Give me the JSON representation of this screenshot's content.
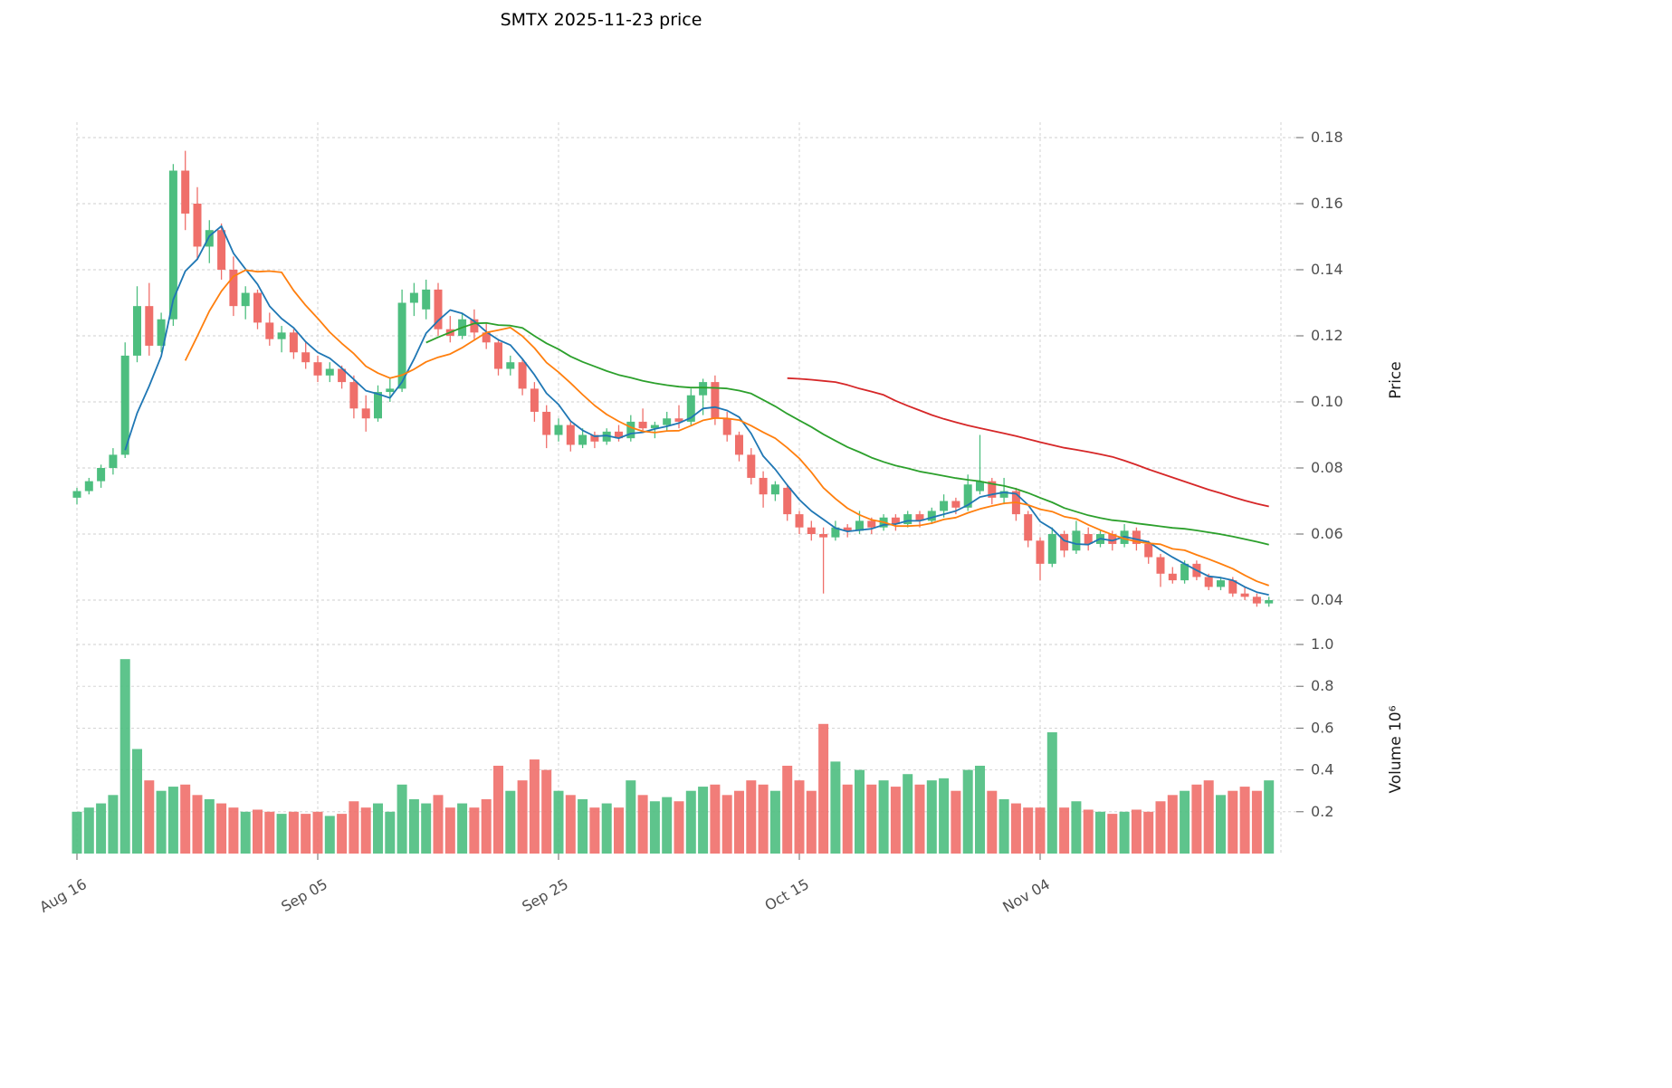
{
  "title": "SMTX  2025-11-23  price",
  "axes": {
    "price_label": "Price",
    "volume_label": "Volume  10⁶",
    "price_ticks": [
      "0.04",
      "0.06",
      "0.08",
      "0.10",
      "0.12",
      "0.14",
      "0.16",
      "0.18"
    ],
    "volume_ticks": [
      "0.2",
      "0.4",
      "0.6",
      "0.8",
      "1.0"
    ],
    "x_ticks": [
      {
        "label": "Aug 16",
        "day": 0
      },
      {
        "label": "Sep 05",
        "day": 20
      },
      {
        "label": "Sep 25",
        "day": 40
      },
      {
        "label": "Oct 15",
        "day": 60
      },
      {
        "label": "Nov 04",
        "day": 80
      }
    ],
    "extra_grid_days": [
      100
    ]
  },
  "chart_data": {
    "type": "candlestick",
    "title": "SMTX  2025-11-23  price",
    "symbol": "SMTX",
    "date": "2025-11-23",
    "x_tick_labels": [
      "Aug 16",
      "Sep 05",
      "Sep 25",
      "Oct 15",
      "Nov 04"
    ],
    "price_axis_range": [
      0.035,
      0.1846
    ],
    "volume_axis_range": [
      0,
      1.03
    ],
    "volume_unit_millions": true,
    "grid": "dashed",
    "colors": {
      "up": "#4dbe7f",
      "down": "#ef6f6a",
      "ma5": "#1f77b4",
      "ma10": "#ff7f0e",
      "ma30": "#2ca02c",
      "ma60": "#d62728"
    },
    "moving_averages": [
      {
        "window": 5,
        "color": "#1f77b4"
      },
      {
        "window": 10,
        "color": "#ff7f0e"
      },
      {
        "window": 30,
        "color": "#2ca02c"
      },
      {
        "window": 60,
        "color": "#d62728"
      }
    ],
    "ohlcv_columns": [
      "open",
      "high",
      "low",
      "close",
      "volume_millions"
    ],
    "ohlcv": [
      [
        0.071,
        0.074,
        0.069,
        0.073,
        0.2
      ],
      [
        0.073,
        0.077,
        0.072,
        0.076,
        0.22
      ],
      [
        0.076,
        0.081,
        0.074,
        0.08,
        0.24
      ],
      [
        0.08,
        0.086,
        0.078,
        0.084,
        0.28
      ],
      [
        0.084,
        0.118,
        0.083,
        0.114,
        0.93
      ],
      [
        0.114,
        0.135,
        0.112,
        0.129,
        0.5
      ],
      [
        0.129,
        0.136,
        0.114,
        0.117,
        0.35
      ],
      [
        0.117,
        0.127,
        0.115,
        0.125,
        0.3
      ],
      [
        0.125,
        0.172,
        0.123,
        0.17,
        0.32
      ],
      [
        0.17,
        0.176,
        0.152,
        0.157,
        0.33
      ],
      [
        0.16,
        0.165,
        0.143,
        0.147,
        0.28
      ],
      [
        0.147,
        0.155,
        0.142,
        0.152,
        0.26
      ],
      [
        0.152,
        0.154,
        0.137,
        0.14,
        0.24
      ],
      [
        0.14,
        0.144,
        0.126,
        0.129,
        0.22
      ],
      [
        0.129,
        0.135,
        0.125,
        0.133,
        0.2
      ],
      [
        0.133,
        0.134,
        0.122,
        0.124,
        0.21
      ],
      [
        0.124,
        0.127,
        0.117,
        0.119,
        0.2
      ],
      [
        0.119,
        0.123,
        0.115,
        0.121,
        0.19
      ],
      [
        0.121,
        0.122,
        0.113,
        0.115,
        0.2
      ],
      [
        0.115,
        0.118,
        0.11,
        0.112,
        0.19
      ],
      [
        0.112,
        0.114,
        0.106,
        0.108,
        0.2
      ],
      [
        0.108,
        0.112,
        0.106,
        0.11,
        0.18
      ],
      [
        0.11,
        0.111,
        0.104,
        0.106,
        0.19
      ],
      [
        0.106,
        0.108,
        0.095,
        0.098,
        0.25
      ],
      [
        0.098,
        0.102,
        0.091,
        0.095,
        0.22
      ],
      [
        0.095,
        0.105,
        0.094,
        0.103,
        0.24
      ],
      [
        0.103,
        0.107,
        0.1,
        0.104,
        0.2
      ],
      [
        0.104,
        0.134,
        0.103,
        0.13,
        0.33
      ],
      [
        0.13,
        0.136,
        0.126,
        0.133,
        0.26
      ],
      [
        0.128,
        0.137,
        0.125,
        0.134,
        0.24
      ],
      [
        0.134,
        0.136,
        0.12,
        0.122,
        0.28
      ],
      [
        0.122,
        0.126,
        0.118,
        0.12,
        0.22
      ],
      [
        0.12,
        0.127,
        0.119,
        0.125,
        0.24
      ],
      [
        0.125,
        0.128,
        0.119,
        0.121,
        0.22
      ],
      [
        0.121,
        0.124,
        0.116,
        0.118,
        0.26
      ],
      [
        0.118,
        0.119,
        0.108,
        0.11,
        0.42
      ],
      [
        0.11,
        0.114,
        0.108,
        0.112,
        0.3
      ],
      [
        0.112,
        0.113,
        0.102,
        0.104,
        0.35
      ],
      [
        0.104,
        0.106,
        0.094,
        0.097,
        0.45
      ],
      [
        0.097,
        0.099,
        0.086,
        0.09,
        0.4
      ],
      [
        0.09,
        0.095,
        0.088,
        0.093,
        0.3
      ],
      [
        0.093,
        0.094,
        0.085,
        0.087,
        0.28
      ],
      [
        0.087,
        0.092,
        0.086,
        0.09,
        0.26
      ],
      [
        0.09,
        0.091,
        0.086,
        0.088,
        0.22
      ],
      [
        0.088,
        0.092,
        0.087,
        0.091,
        0.24
      ],
      [
        0.091,
        0.093,
        0.088,
        0.089,
        0.22
      ],
      [
        0.089,
        0.096,
        0.088,
        0.094,
        0.35
      ],
      [
        0.094,
        0.098,
        0.091,
        0.092,
        0.28
      ],
      [
        0.092,
        0.094,
        0.089,
        0.093,
        0.25
      ],
      [
        0.093,
        0.097,
        0.091,
        0.095,
        0.27
      ],
      [
        0.095,
        0.099,
        0.092,
        0.094,
        0.25
      ],
      [
        0.094,
        0.104,
        0.093,
        0.102,
        0.3
      ],
      [
        0.102,
        0.107,
        0.096,
        0.106,
        0.32
      ],
      [
        0.106,
        0.108,
        0.093,
        0.095,
        0.33
      ],
      [
        0.095,
        0.097,
        0.088,
        0.09,
        0.28
      ],
      [
        0.09,
        0.091,
        0.082,
        0.084,
        0.3
      ],
      [
        0.084,
        0.086,
        0.075,
        0.077,
        0.35
      ],
      [
        0.077,
        0.079,
        0.068,
        0.072,
        0.33
      ],
      [
        0.072,
        0.076,
        0.07,
        0.075,
        0.3
      ],
      [
        0.074,
        0.075,
        0.064,
        0.066,
        0.42
      ],
      [
        0.066,
        0.067,
        0.06,
        0.062,
        0.35
      ],
      [
        0.062,
        0.064,
        0.058,
        0.06,
        0.3
      ],
      [
        0.06,
        0.062,
        0.042,
        0.059,
        0.62
      ],
      [
        0.059,
        0.064,
        0.058,
        0.062,
        0.44
      ],
      [
        0.062,
        0.063,
        0.059,
        0.061,
        0.33
      ],
      [
        0.061,
        0.067,
        0.06,
        0.064,
        0.4
      ],
      [
        0.064,
        0.065,
        0.06,
        0.062,
        0.33
      ],
      [
        0.062,
        0.066,
        0.061,
        0.065,
        0.35
      ],
      [
        0.065,
        0.066,
        0.061,
        0.063,
        0.32
      ],
      [
        0.063,
        0.067,
        0.062,
        0.066,
        0.38
      ],
      [
        0.066,
        0.067,
        0.062,
        0.064,
        0.33
      ],
      [
        0.064,
        0.068,
        0.063,
        0.067,
        0.35
      ],
      [
        0.067,
        0.072,
        0.065,
        0.07,
        0.36
      ],
      [
        0.07,
        0.071,
        0.066,
        0.068,
        0.3
      ],
      [
        0.068,
        0.078,
        0.067,
        0.075,
        0.4
      ],
      [
        0.073,
        0.09,
        0.072,
        0.076,
        0.42
      ],
      [
        0.076,
        0.077,
        0.069,
        0.071,
        0.3
      ],
      [
        0.071,
        0.077,
        0.069,
        0.073,
        0.26
      ],
      [
        0.073,
        0.074,
        0.064,
        0.066,
        0.24
      ],
      [
        0.066,
        0.067,
        0.056,
        0.058,
        0.22
      ],
      [
        0.058,
        0.059,
        0.046,
        0.051,
        0.22
      ],
      [
        0.051,
        0.062,
        0.05,
        0.06,
        0.58
      ],
      [
        0.06,
        0.061,
        0.053,
        0.055,
        0.22
      ],
      [
        0.055,
        0.064,
        0.054,
        0.061,
        0.25
      ],
      [
        0.06,
        0.062,
        0.055,
        0.057,
        0.21
      ],
      [
        0.057,
        0.061,
        0.056,
        0.06,
        0.2
      ],
      [
        0.06,
        0.061,
        0.055,
        0.057,
        0.19
      ],
      [
        0.057,
        0.063,
        0.056,
        0.061,
        0.2
      ],
      [
        0.061,
        0.062,
        0.055,
        0.057,
        0.21
      ],
      [
        0.057,
        0.058,
        0.051,
        0.053,
        0.2
      ],
      [
        0.053,
        0.054,
        0.044,
        0.048,
        0.25
      ],
      [
        0.048,
        0.05,
        0.045,
        0.046,
        0.28
      ],
      [
        0.046,
        0.052,
        0.045,
        0.051,
        0.3
      ],
      [
        0.051,
        0.052,
        0.046,
        0.047,
        0.33
      ],
      [
        0.047,
        0.048,
        0.043,
        0.044,
        0.35
      ],
      [
        0.044,
        0.047,
        0.043,
        0.046,
        0.28
      ],
      [
        0.046,
        0.047,
        0.041,
        0.042,
        0.3
      ],
      [
        0.042,
        0.044,
        0.04,
        0.041,
        0.32
      ],
      [
        0.041,
        0.042,
        0.038,
        0.039,
        0.3
      ],
      [
        0.039,
        0.041,
        0.038,
        0.04,
        0.35
      ]
    ]
  }
}
